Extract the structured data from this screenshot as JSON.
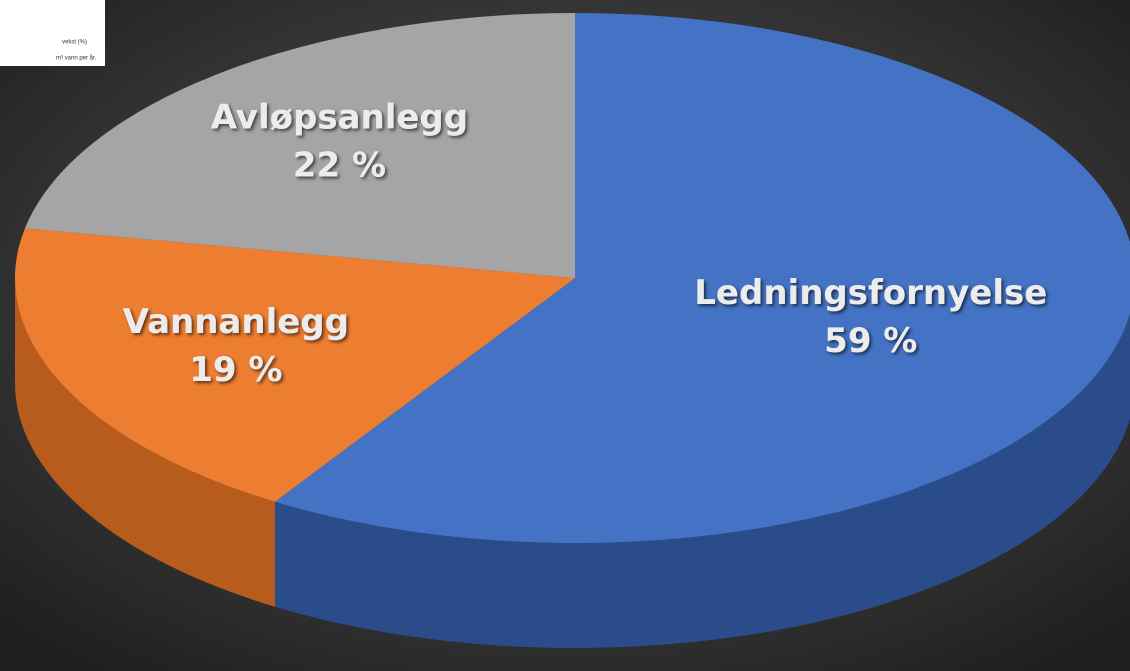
{
  "chart_data": {
    "type": "pie3d",
    "categories": [
      "Ledningsfornyelse",
      "Vannanlegg",
      "Avløpsanlegg"
    ],
    "values": [
      59,
      19,
      22
    ],
    "value_labels": [
      "59 %",
      "19 %",
      "22 %"
    ],
    "colors": [
      "#4472c4",
      "#ed7d31",
      "#a5a5a5"
    ],
    "side_colors": [
      "#2b4c8a",
      "#b85c1e",
      "#7a7a7a"
    ],
    "overlay_texts": [
      "vekst (%)",
      "m³ vann per år."
    ]
  }
}
